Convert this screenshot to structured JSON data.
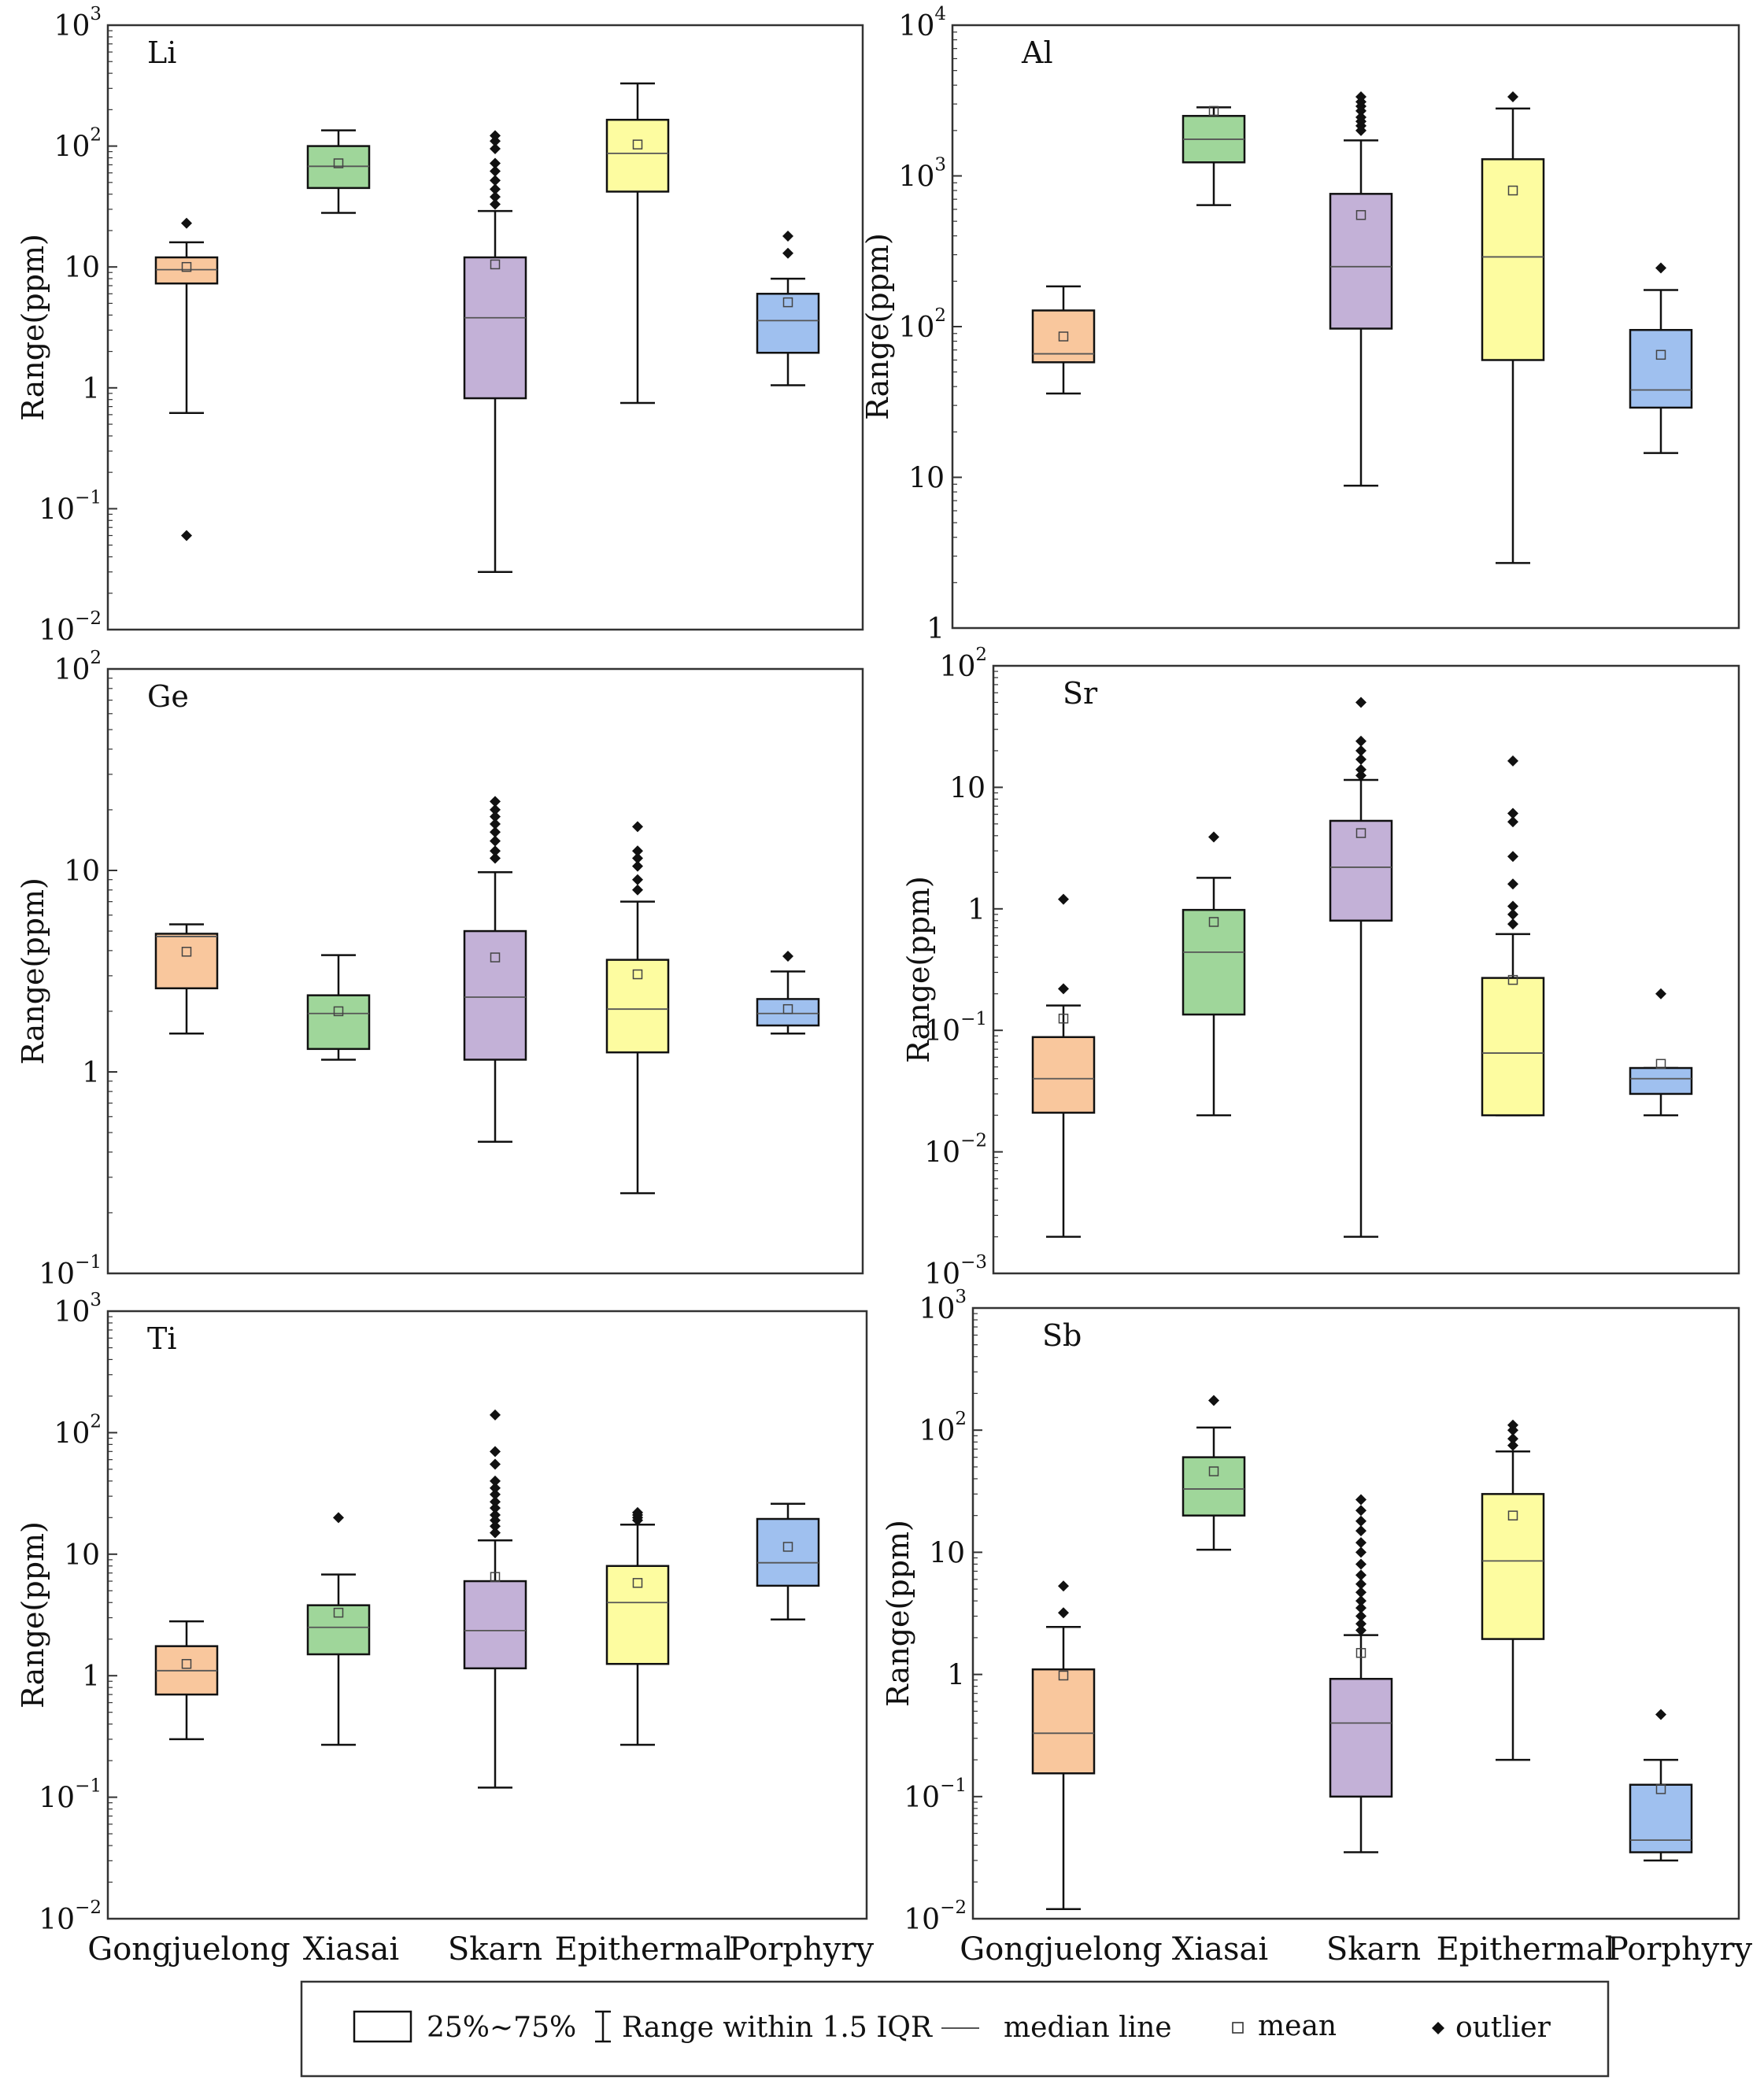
{
  "chart_data": [
    {
      "type": "box",
      "title": "Li",
      "ylabel": "Range(ppm)",
      "yscale": "log",
      "ylim": [
        0.01,
        1000
      ],
      "yticks": [
        {
          "value": 1000,
          "mantissa": "10",
          "exp": "3"
        },
        {
          "value": 100,
          "mantissa": "10",
          "exp": "2"
        },
        {
          "value": 10,
          "mantissa": "10",
          "exp": ""
        },
        {
          "value": 1,
          "mantissa": "1",
          "exp": ""
        },
        {
          "value": 0.1,
          "mantissa": "10",
          "exp": "−1"
        },
        {
          "value": 0.01,
          "mantissa": "10",
          "exp": "−2"
        }
      ],
      "categories": [
        "Gongjuelong",
        "Xiasai",
        "Skarn",
        "Epithermal",
        "Porphyry"
      ],
      "boxes": [
        {
          "whisker_low": 0.62,
          "q1": 7.3,
          "median": 9.5,
          "q3": 12.0,
          "whisker_high": 16.0,
          "mean": 10.0,
          "outliers": [
            23,
            0.06
          ]
        },
        {
          "whisker_low": 28,
          "q1": 45,
          "median": 68,
          "q3": 100,
          "whisker_high": 135,
          "mean": 72,
          "outliers": []
        },
        {
          "whisker_low": 0.03,
          "q1": 0.82,
          "median": 3.8,
          "q3": 12.0,
          "whisker_high": 29,
          "mean": 10.5,
          "outliers": [
            33,
            38,
            44,
            52,
            62,
            72,
            95,
            110,
            122
          ]
        },
        {
          "whisker_low": 0.75,
          "q1": 42,
          "median": 87,
          "q3": 165,
          "whisker_high": 330,
          "mean": 103,
          "outliers": []
        },
        {
          "whisker_low": 1.05,
          "q1": 1.95,
          "median": 3.6,
          "q3": 6.0,
          "whisker_high": 8.0,
          "mean": 5.1,
          "outliers": [
            13,
            18
          ]
        }
      ]
    },
    {
      "type": "box",
      "title": "Al",
      "ylabel": "Range(ppm)",
      "yscale": "log",
      "ylim": [
        1,
        10000
      ],
      "yticks": [
        {
          "value": 10000,
          "mantissa": "10",
          "exp": "4"
        },
        {
          "value": 1000,
          "mantissa": "10",
          "exp": "3"
        },
        {
          "value": 100,
          "mantissa": "10",
          "exp": "2"
        },
        {
          "value": 10,
          "mantissa": "10",
          "exp": ""
        },
        {
          "value": 1,
          "mantissa": "1",
          "exp": ""
        }
      ],
      "categories": [
        "Gongjuelong",
        "Xiasai",
        "Skarn",
        "Epithermal",
        "Porphyry"
      ],
      "boxes": [
        {
          "whisker_low": 36,
          "q1": 58,
          "median": 66,
          "q3": 128,
          "whisker_high": 185,
          "mean": 86,
          "outliers": []
        },
        {
          "whisker_low": 640,
          "q1": 1230,
          "median": 1750,
          "q3": 2500,
          "whisker_high": 2850,
          "mean": 2700,
          "outliers": []
        },
        {
          "whisker_low": 8.8,
          "q1": 97,
          "median": 250,
          "q3": 760,
          "whisker_high": 1720,
          "mean": 550,
          "outliers": [
            2000,
            2150,
            2300,
            2450,
            2700,
            2900,
            3100,
            3350
          ]
        },
        {
          "whisker_low": 2.7,
          "q1": 60,
          "median": 290,
          "q3": 1290,
          "whisker_high": 2800,
          "mean": 800,
          "outliers": [
            3350
          ]
        },
        {
          "whisker_low": 14.5,
          "q1": 29,
          "median": 38,
          "q3": 95,
          "whisker_high": 175,
          "mean": 65,
          "outliers": [
            245
          ]
        }
      ]
    },
    {
      "type": "box",
      "title": "Ge",
      "ylabel": "Range(ppm)",
      "yscale": "log",
      "ylim": [
        0.1,
        100
      ],
      "yticks": [
        {
          "value": 100,
          "mantissa": "10",
          "exp": "2"
        },
        {
          "value": 10,
          "mantissa": "10",
          "exp": ""
        },
        {
          "value": 1,
          "mantissa": "1",
          "exp": ""
        },
        {
          "value": 0.1,
          "mantissa": "10",
          "exp": "−1"
        }
      ],
      "categories": [
        "Gongjuelong",
        "Xiasai",
        "Skarn",
        "Epithermal",
        "Porphyry"
      ],
      "boxes": [
        {
          "whisker_low": 1.55,
          "q1": 2.6,
          "median": 4.7,
          "q3": 4.85,
          "whisker_high": 5.4,
          "mean": 3.95,
          "outliers": []
        },
        {
          "whisker_low": 1.15,
          "q1": 1.3,
          "median": 1.95,
          "q3": 2.4,
          "whisker_high": 3.8,
          "mean": 2.0,
          "outliers": []
        },
        {
          "whisker_low": 0.45,
          "q1": 1.15,
          "median": 2.35,
          "q3": 5.0,
          "whisker_high": 9.8,
          "mean": 3.7,
          "outliers": [
            11.5,
            12.5,
            14,
            15.5,
            17,
            18.5,
            20,
            22
          ]
        },
        {
          "whisker_low": 0.25,
          "q1": 1.25,
          "median": 2.05,
          "q3": 3.6,
          "whisker_high": 7.0,
          "mean": 3.05,
          "outliers": [
            8.0,
            9.0,
            10.5,
            11.5,
            12.5,
            16.5
          ]
        },
        {
          "whisker_low": 1.55,
          "q1": 1.7,
          "median": 1.95,
          "q3": 2.3,
          "whisker_high": 3.15,
          "mean": 2.05,
          "outliers": [
            3.75
          ]
        }
      ]
    },
    {
      "type": "box",
      "title": "Sr",
      "ylabel": "Range(ppm)",
      "yscale": "log",
      "ylim": [
        0.001,
        100
      ],
      "yticks": [
        {
          "value": 100,
          "mantissa": "10",
          "exp": "2"
        },
        {
          "value": 10,
          "mantissa": "10",
          "exp": ""
        },
        {
          "value": 1,
          "mantissa": "1",
          "exp": ""
        },
        {
          "value": 0.1,
          "mantissa": "10",
          "exp": "−1"
        },
        {
          "value": 0.01,
          "mantissa": "10",
          "exp": "−2"
        },
        {
          "value": 0.001,
          "mantissa": "10",
          "exp": "−3"
        }
      ],
      "categories": [
        "Gongjuelong",
        "Xiasai",
        "Skarn",
        "Epithermal",
        "Porphyry"
      ],
      "boxes": [
        {
          "whisker_low": 0.002,
          "q1": 0.021,
          "median": 0.04,
          "q3": 0.088,
          "whisker_high": 0.16,
          "mean": 0.125,
          "outliers": [
            0.22,
            1.2
          ]
        },
        {
          "whisker_low": 0.02,
          "q1": 0.135,
          "median": 0.44,
          "q3": 0.98,
          "whisker_high": 1.8,
          "mean": 0.78,
          "outliers": [
            3.9
          ]
        },
        {
          "whisker_low": 0.002,
          "q1": 0.8,
          "median": 2.2,
          "q3": 5.3,
          "whisker_high": 11.5,
          "mean": 4.2,
          "outliers": [
            12.5,
            14,
            17,
            20,
            24,
            50
          ]
        },
        {
          "whisker_low": 0.02,
          "q1": 0.02,
          "median": 0.065,
          "q3": 0.27,
          "whisker_high": 0.62,
          "mean": 0.26,
          "outliers": [
            0.75,
            0.9,
            1.05,
            1.6,
            2.7,
            5.2,
            6.1,
            16.5
          ]
        },
        {
          "whisker_low": 0.02,
          "q1": 0.03,
          "median": 0.04,
          "q3": 0.049,
          "whisker_high": 0.049,
          "mean": 0.053,
          "outliers": [
            0.2
          ]
        }
      ]
    },
    {
      "type": "box",
      "title": "Ti",
      "ylabel": "Range(ppm)",
      "yscale": "log",
      "ylim": [
        0.01,
        1000
      ],
      "yticks": [
        {
          "value": 1000,
          "mantissa": "10",
          "exp": "3"
        },
        {
          "value": 100,
          "mantissa": "10",
          "exp": "2"
        },
        {
          "value": 10,
          "mantissa": "10",
          "exp": ""
        },
        {
          "value": 1,
          "mantissa": "1",
          "exp": ""
        },
        {
          "value": 0.1,
          "mantissa": "10",
          "exp": "−1"
        },
        {
          "value": 0.01,
          "mantissa": "10",
          "exp": "−2"
        }
      ],
      "categories": [
        "Gongjuelong",
        "Xiasai",
        "Skarn",
        "Epithermal",
        "Porphyry"
      ],
      "boxes": [
        {
          "whisker_low": 0.3,
          "q1": 0.7,
          "median": 1.1,
          "q3": 1.75,
          "whisker_high": 2.8,
          "mean": 1.25,
          "outliers": []
        },
        {
          "whisker_low": 0.27,
          "q1": 1.5,
          "median": 2.5,
          "q3": 3.8,
          "whisker_high": 6.8,
          "mean": 3.3,
          "outliers": [
            20
          ]
        },
        {
          "whisker_low": 0.12,
          "q1": 1.15,
          "median": 2.35,
          "q3": 6.0,
          "whisker_high": 13,
          "mean": 6.5,
          "outliers": [
            15,
            17,
            19,
            21,
            24,
            27,
            31,
            35,
            40,
            55,
            70,
            140
          ]
        },
        {
          "whisker_low": 0.27,
          "q1": 1.25,
          "median": 4.0,
          "q3": 8.0,
          "whisker_high": 17.5,
          "mean": 5.8,
          "outliers": [
            19,
            20,
            21,
            22
          ]
        },
        {
          "whisker_low": 2.9,
          "q1": 5.5,
          "median": 8.5,
          "q3": 19.5,
          "whisker_high": 26,
          "mean": 11.5,
          "outliers": []
        }
      ]
    },
    {
      "type": "box",
      "title": "Sb",
      "ylabel": "Range(ppm)",
      "yscale": "log",
      "ylim": [
        0.01,
        1000
      ],
      "yticks": [
        {
          "value": 1000,
          "mantissa": "10",
          "exp": "3"
        },
        {
          "value": 100,
          "mantissa": "10",
          "exp": "2"
        },
        {
          "value": 10,
          "mantissa": "10",
          "exp": ""
        },
        {
          "value": 1,
          "mantissa": "1",
          "exp": ""
        },
        {
          "value": 0.1,
          "mantissa": "10",
          "exp": "−1"
        },
        {
          "value": 0.01,
          "mantissa": "10",
          "exp": "−2"
        }
      ],
      "categories": [
        "Gongjuelong",
        "Xiasai",
        "Skarn",
        "Epithermal",
        "Porphyry"
      ],
      "boxes": [
        {
          "whisker_low": 0.012,
          "q1": 0.155,
          "median": 0.33,
          "q3": 1.1,
          "whisker_high": 2.45,
          "mean": 0.98,
          "outliers": [
            3.2,
            5.3
          ]
        },
        {
          "whisker_low": 10.5,
          "q1": 20,
          "median": 33,
          "q3": 60,
          "whisker_high": 105,
          "mean": 46,
          "outliers": [
            175
          ]
        },
        {
          "whisker_low": 0.035,
          "q1": 0.1,
          "median": 0.4,
          "q3": 0.92,
          "whisker_high": 2.1,
          "mean": 1.5,
          "outliers": [
            2.3,
            2.6,
            3.0,
            3.5,
            4.0,
            4.7,
            5.5,
            6.5,
            8.0,
            10,
            12,
            15,
            18,
            22,
            27
          ]
        },
        {
          "whisker_low": 0.2,
          "q1": 1.95,
          "median": 8.5,
          "q3": 30,
          "whisker_high": 67,
          "mean": 20,
          "outliers": [
            75,
            85,
            100,
            110
          ]
        },
        {
          "whisker_low": 0.03,
          "q1": 0.035,
          "median": 0.044,
          "q3": 0.125,
          "whisker_high": 0.2,
          "mean": 0.115,
          "outliers": [
            0.47
          ]
        }
      ]
    }
  ],
  "colors": {
    "Gongjuelong": "#f9c79d",
    "Xiasai": "#9fd69a",
    "Skarn": "#c3b1d7",
    "Epithermal": "#fdfca0",
    "Porphyry": "#9fc0ef",
    "axis": "#333333",
    "ink": "#111111"
  },
  "legend": {
    "box_label": "25%~75%",
    "range_label": "Range within 1.5 IQR",
    "median_label": "median line",
    "mean_label": "mean",
    "outlier_label": "outlier"
  }
}
